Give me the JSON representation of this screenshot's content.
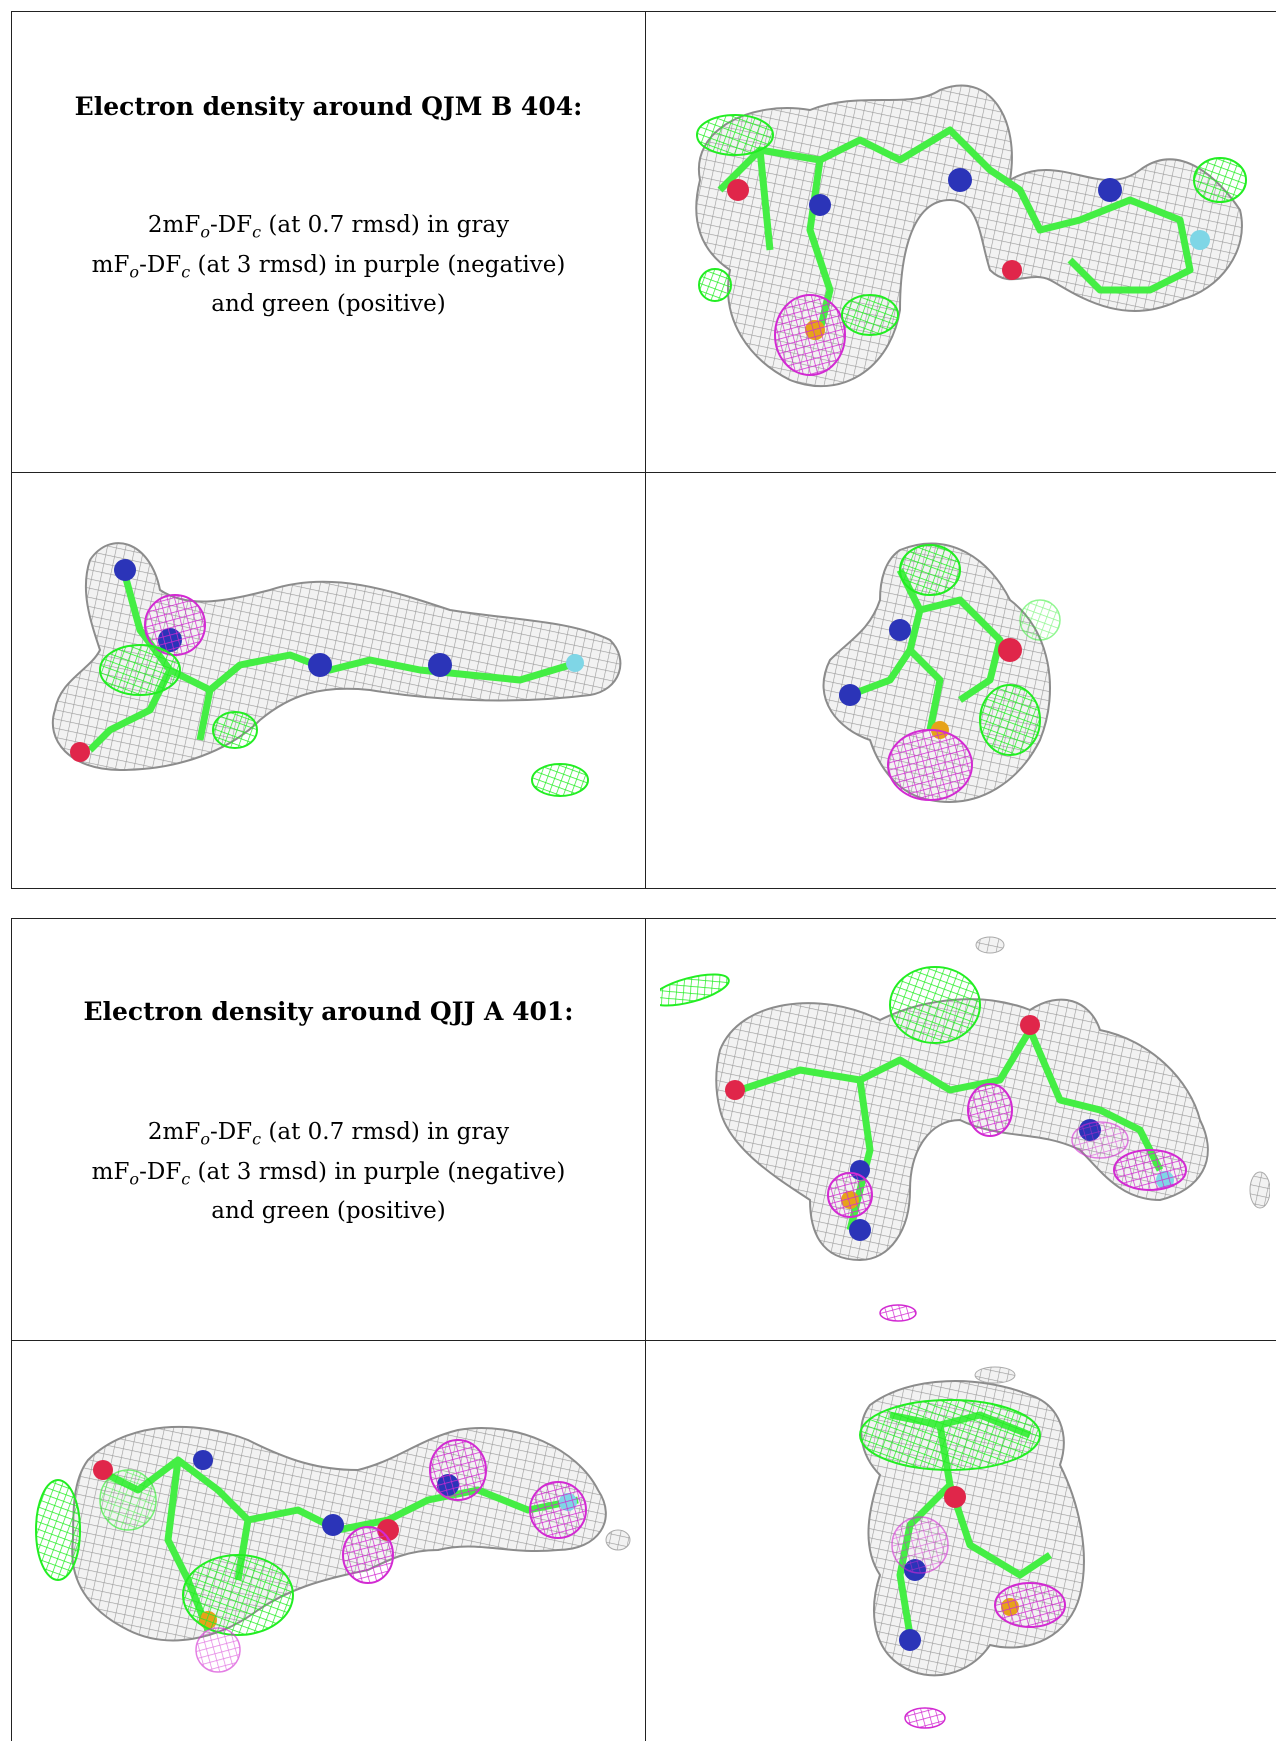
{
  "sections": [
    {
      "heading": "Electron density around QJM B 404:",
      "caption": {
        "line1_prefix": "2mF",
        "line1_mid": "-DF",
        "line1_suffix": " (at 0.7 rmsd) in gray",
        "line2_prefix": "mF",
        "line2_mid": "-DF",
        "line2_suffix": " (at 3 rmsd) in purple (negative)",
        "line3": "and green (positive)",
        "sub_o": "o",
        "sub_c": "c"
      },
      "views": [
        "view-top-right",
        "view-bottom-left",
        "view-bottom-right"
      ]
    },
    {
      "heading": "Electron density around QJJ A 401:",
      "caption": {
        "line1_prefix": "2mF",
        "line1_mid": "-DF",
        "line1_suffix": " (at 0.7 rmsd) in gray",
        "line2_prefix": "mF",
        "line2_mid": "-DF",
        "line2_suffix": " (at 3 rmsd) in purple (negative)",
        "line3": "and green (positive)",
        "sub_o": "o",
        "sub_c": "c"
      },
      "views": [
        "view-top-right",
        "view-bottom-left",
        "view-bottom-right"
      ]
    }
  ],
  "colors": {
    "mesh_gray": "#a6a6a6",
    "mesh_green": "#22ee22",
    "mesh_purple": "#d22ad2",
    "bond_green": "#44ee44",
    "atom_blue": "#2b34b8",
    "atom_red": "#e0264a",
    "atom_yellow": "#e6a21a",
    "atom_cyan": "#7fd6e6"
  }
}
